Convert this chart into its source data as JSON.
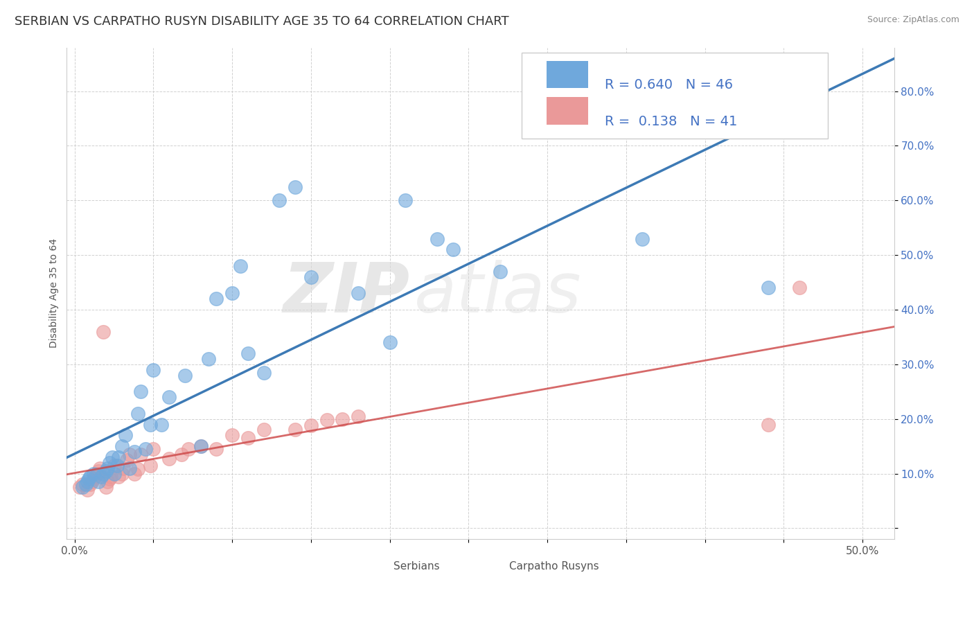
{
  "title": "SERBIAN VS CARPATHO RUSYN DISABILITY AGE 35 TO 64 CORRELATION CHART",
  "source": "Source: ZipAtlas.com",
  "ylabel": "Disability Age 35 to 64",
  "xlim": [
    -0.005,
    0.52
  ],
  "ylim": [
    -0.02,
    0.88
  ],
  "xticks": [
    0.0,
    0.05,
    0.1,
    0.15,
    0.2,
    0.25,
    0.3,
    0.35,
    0.4,
    0.45,
    0.5
  ],
  "yticks": [
    0.0,
    0.1,
    0.2,
    0.3,
    0.4,
    0.5,
    0.6,
    0.7,
    0.8
  ],
  "xticklabels": [
    "0.0%",
    "",
    "",
    "",
    "",
    "",
    "",
    "",
    "",
    "",
    "50.0%"
  ],
  "yticklabels_right": [
    "",
    "10.0%",
    "20.0%",
    "30.0%",
    "40.0%",
    "50.0%",
    "60.0%",
    "70.0%",
    "80.0%"
  ],
  "serbian_color": "#6fa8dc",
  "serbian_line_color": "#3d7ab5",
  "carpatho_color": "#ea9999",
  "carpatho_line_color": "#cc4444",
  "serbian_R": 0.64,
  "serbian_N": 46,
  "carpatho_R": 0.138,
  "carpatho_N": 41,
  "serbian_x": [
    0.005,
    0.007,
    0.008,
    0.009,
    0.01,
    0.012,
    0.015,
    0.017,
    0.018,
    0.02,
    0.021,
    0.022,
    0.024,
    0.025,
    0.027,
    0.028,
    0.03,
    0.032,
    0.035,
    0.038,
    0.04,
    0.042,
    0.045,
    0.048,
    0.05,
    0.055,
    0.06,
    0.07,
    0.08,
    0.085,
    0.09,
    0.1,
    0.105,
    0.11,
    0.12,
    0.13,
    0.14,
    0.15,
    0.18,
    0.2,
    0.21,
    0.23,
    0.24,
    0.27,
    0.36,
    0.44
  ],
  "serbian_y": [
    0.075,
    0.08,
    0.085,
    0.09,
    0.095,
    0.1,
    0.085,
    0.095,
    0.1,
    0.105,
    0.11,
    0.12,
    0.13,
    0.1,
    0.115,
    0.13,
    0.15,
    0.17,
    0.11,
    0.14,
    0.21,
    0.25,
    0.145,
    0.19,
    0.29,
    0.19,
    0.24,
    0.28,
    0.15,
    0.31,
    0.42,
    0.43,
    0.48,
    0.32,
    0.285,
    0.6,
    0.625,
    0.46,
    0.43,
    0.34,
    0.6,
    0.53,
    0.51,
    0.47,
    0.53,
    0.44
  ],
  "carpatho_x": [
    0.003,
    0.005,
    0.008,
    0.01,
    0.011,
    0.012,
    0.013,
    0.014,
    0.015,
    0.016,
    0.018,
    0.02,
    0.021,
    0.022,
    0.023,
    0.025,
    0.028,
    0.03,
    0.031,
    0.033,
    0.035,
    0.038,
    0.04,
    0.042,
    0.048,
    0.05,
    0.06,
    0.068,
    0.072,
    0.08,
    0.09,
    0.1,
    0.11,
    0.12,
    0.14,
    0.15,
    0.16,
    0.17,
    0.18,
    0.44,
    0.46
  ],
  "carpatho_y": [
    0.075,
    0.08,
    0.07,
    0.08,
    0.085,
    0.09,
    0.095,
    0.1,
    0.105,
    0.11,
    0.36,
    0.075,
    0.085,
    0.09,
    0.095,
    0.115,
    0.095,
    0.1,
    0.11,
    0.125,
    0.135,
    0.1,
    0.108,
    0.135,
    0.115,
    0.145,
    0.128,
    0.135,
    0.145,
    0.15,
    0.145,
    0.17,
    0.165,
    0.18,
    0.18,
    0.188,
    0.198,
    0.2,
    0.205,
    0.19,
    0.44
  ],
  "watermark_zip": "ZIP",
  "watermark_atlas": "atlas",
  "background_color": "#ffffff",
  "grid_color": "#cccccc",
  "legend_text_color": "#4472c4",
  "title_fontsize": 13,
  "axis_label_fontsize": 10,
  "tick_fontsize": 11
}
